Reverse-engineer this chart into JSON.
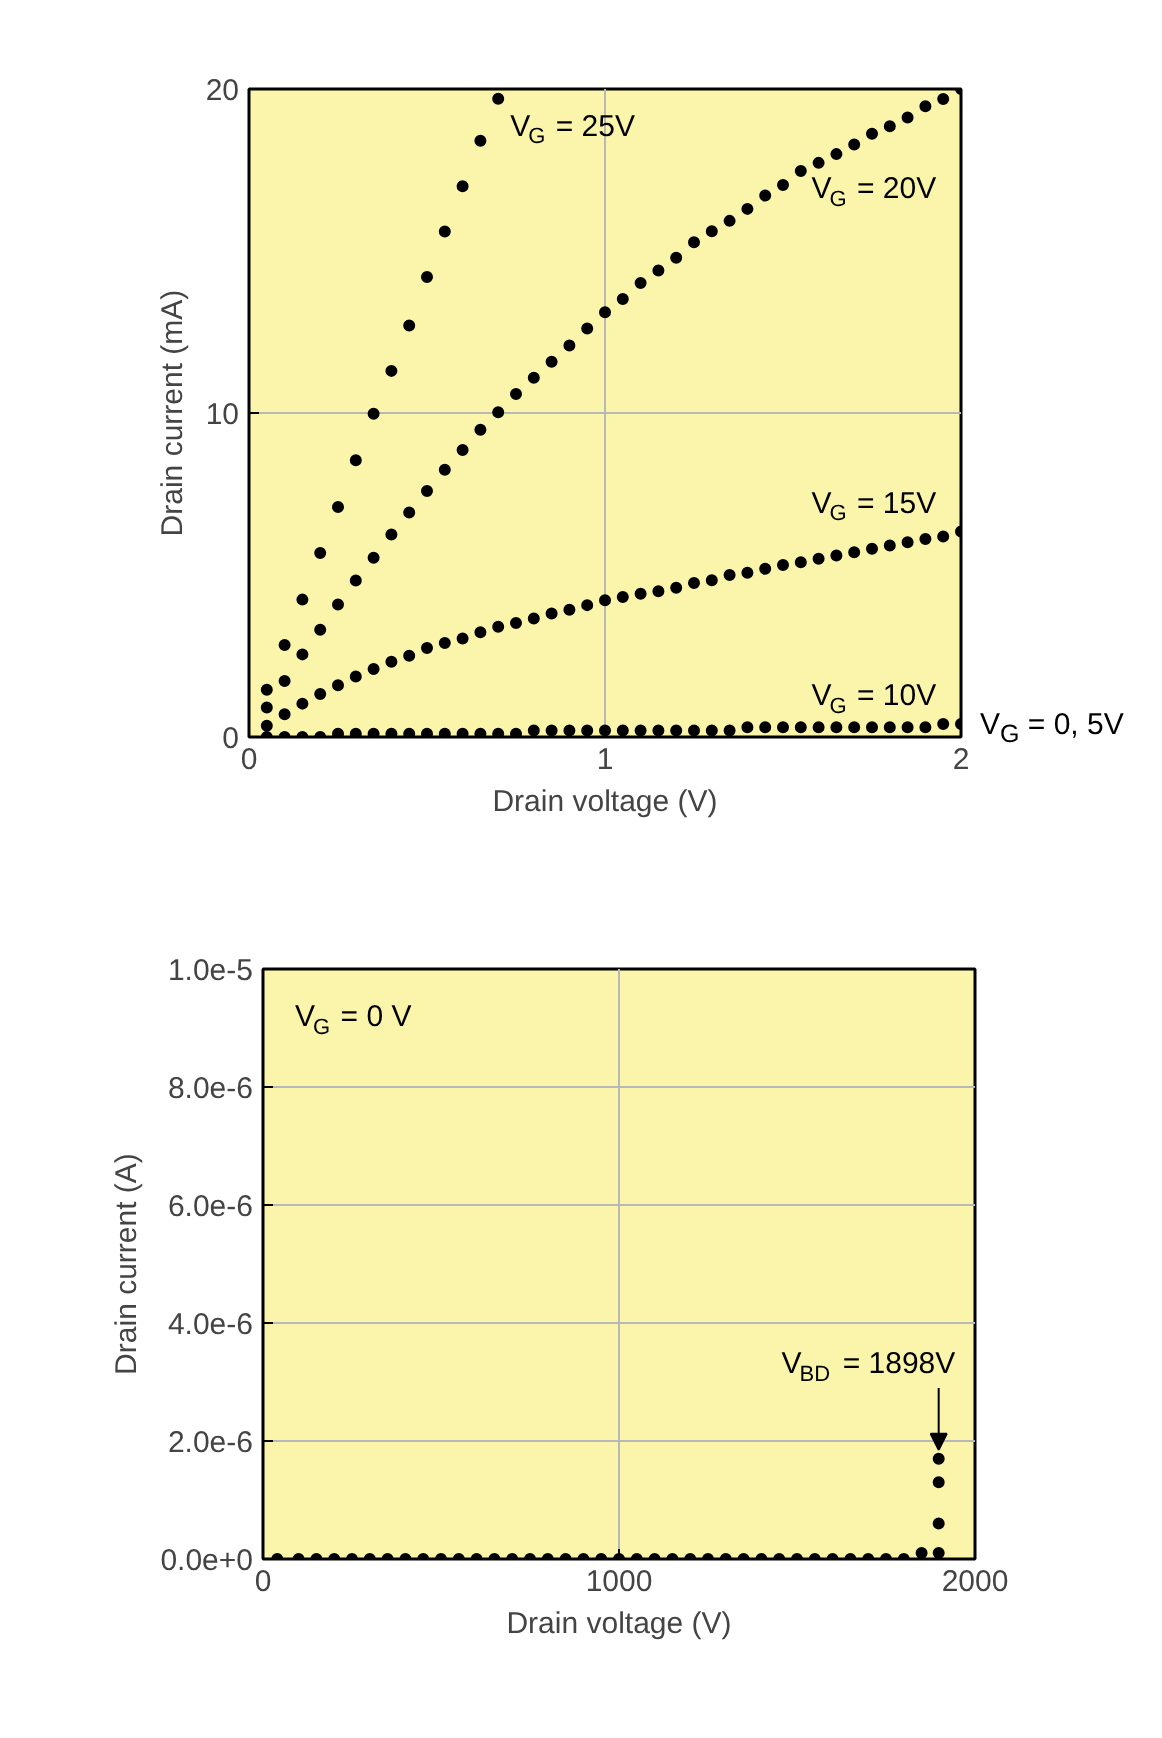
{
  "chart_data": [
    {
      "type": "scatter",
      "xlabel": "Drain voltage (V)",
      "ylabel": "Drain current (mA)",
      "xlim": [
        0,
        2
      ],
      "ylim": [
        0,
        20
      ],
      "xticks": [
        0,
        1,
        2
      ],
      "yticks": [
        0,
        10,
        20
      ],
      "grid": true,
      "marker": "circle",
      "x": [
        0.05,
        0.1,
        0.15,
        0.2,
        0.25,
        0.3,
        0.35,
        0.4,
        0.45,
        0.5,
        0.55,
        0.6,
        0.65,
        0.7,
        0.75,
        0.8,
        0.85,
        0.9,
        0.95,
        1.0,
        1.05,
        1.1,
        1.15,
        1.2,
        1.25,
        1.3,
        1.35,
        1.4,
        1.45,
        1.5,
        1.55,
        1.6,
        1.65,
        1.7,
        1.75,
        1.8,
        1.85,
        1.9,
        1.95,
        2.0
      ],
      "series": [
        {
          "color": "#000000",
          "x": [
            0.05,
            0.1,
            0.15,
            0.2,
            0.25,
            0.3,
            0.35,
            0.4,
            0.45,
            0.5,
            0.55,
            0.6,
            0.65,
            0.7
          ],
          "values": [
            1.46,
            2.84,
            4.24,
            5.68,
            7.1,
            8.54,
            9.98,
            11.3,
            12.7,
            14.2,
            15.6,
            17.0,
            18.4,
            19.7
          ]
        },
        {
          "color": "#000000",
          "values": [
            0.91,
            1.73,
            2.55,
            3.31,
            4.09,
            4.83,
            5.53,
            6.25,
            6.93,
            7.59,
            8.25,
            8.86,
            9.48,
            10.02,
            10.59,
            11.09,
            11.58,
            12.08,
            12.61,
            13.11,
            13.52,
            14.01,
            14.4,
            14.79,
            15.27,
            15.61,
            15.93,
            16.3,
            16.71,
            17.04,
            17.47,
            17.72,
            17.99,
            18.29,
            18.62,
            18.85,
            19.12,
            19.47,
            19.69,
            20.0
          ]
        },
        {
          "color": "#000000",
          "values": [
            0.35,
            0.7,
            1.03,
            1.33,
            1.6,
            1.87,
            2.1,
            2.32,
            2.51,
            2.75,
            2.9,
            3.04,
            3.23,
            3.4,
            3.52,
            3.66,
            3.81,
            3.93,
            4.07,
            4.22,
            4.32,
            4.42,
            4.5,
            4.61,
            4.75,
            4.84,
            5.0,
            5.07,
            5.19,
            5.31,
            5.39,
            5.5,
            5.6,
            5.7,
            5.81,
            5.91,
            6.01,
            6.11,
            6.19,
            6.34
          ]
        },
        {
          "color": "#000000",
          "values": [
            0,
            0,
            0,
            0,
            0.1,
            0.1,
            0.1,
            0.1,
            0.1,
            0.1,
            0.1,
            0.1,
            0.1,
            0.1,
            0.1,
            0.2,
            0.2,
            0.2,
            0.2,
            0.2,
            0.2,
            0.2,
            0.2,
            0.2,
            0.2,
            0.2,
            0.2,
            0.3,
            0.3,
            0.3,
            0.3,
            0.3,
            0.3,
            0.3,
            0.3,
            0.3,
            0.3,
            0.3,
            0.4,
            0.4
          ]
        }
      ],
      "annotations": [
        "V$_{G}$ = 25V",
        "V$_{G}$ = 20V",
        "V$_{G}$ = 15V",
        "V$_{G}$ = 10V",
        "V$_{G}$ = 0, 5V"
      ]
    },
    {
      "type": "scatter",
      "xlabel": "Drain voltage (V)",
      "ylabel": "Drain current (A)",
      "xlim": [
        0,
        2000
      ],
      "ylim": [
        0,
        1e-05
      ],
      "xticks": [
        0,
        1000,
        2000
      ],
      "yticks": [
        {
          "value": 0,
          "label": "0.0e+0"
        },
        {
          "value": 2e-06,
          "label": "2.0e-6"
        },
        {
          "value": 4e-06,
          "label": "4.0e-6"
        },
        {
          "value": 6e-06,
          "label": "6.0e-6"
        },
        {
          "value": 8e-06,
          "label": "8.0e-6"
        },
        {
          "value": 1e-05,
          "label": "1.0e-5"
        }
      ],
      "grid": true,
      "marker": "circle",
      "series": [
        {
          "color": "#000000",
          "x": [
            40,
            100,
            150,
            200,
            250,
            300,
            350,
            400,
            450,
            500,
            550,
            600,
            650,
            700,
            750,
            800,
            850,
            900,
            950,
            1000,
            1050,
            1100,
            1150,
            1200,
            1250,
            1300,
            1350,
            1400,
            1450,
            1500,
            1550,
            1600,
            1650,
            1700,
            1750,
            1800,
            1850,
            1898,
            1898,
            1898,
            1898
          ],
          "values": [
            0,
            0,
            0,
            0,
            0,
            0,
            0,
            0,
            0,
            0,
            0,
            0,
            0,
            0,
            0,
            0,
            0,
            0,
            0,
            0,
            0,
            0,
            0,
            0,
            0,
            0,
            0,
            0,
            0,
            0,
            0,
            0,
            0,
            0,
            0,
            0,
            1e-07,
            1e-07,
            6e-07,
            1.3e-06,
            1.7e-06
          ]
        }
      ],
      "annotations": [
        "V$_{G}$ = 0 V",
        {
          "text": "V$_{BD}$ = 1898V",
          "x": 1898,
          "y": 1.7e-06
        }
      ]
    }
  ]
}
